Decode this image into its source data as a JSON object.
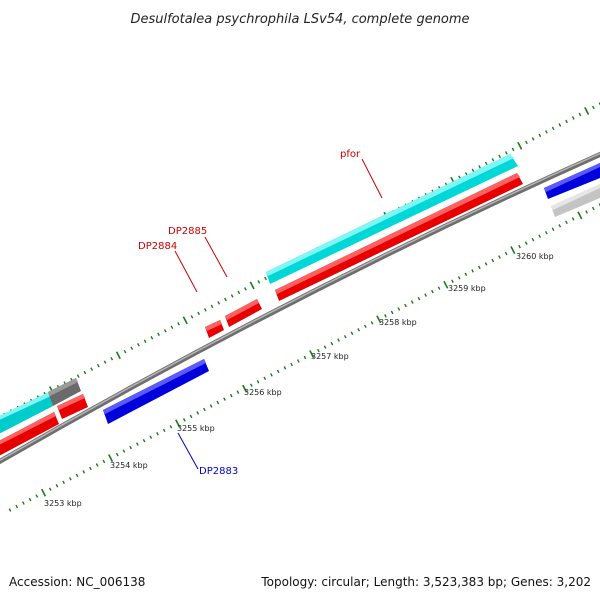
{
  "title": "Desulfotalea psychrophila LSv54, complete genome",
  "footer": {
    "accession": "Accession: NC_006138",
    "summary": "Topology: circular; Length: 3,523,383 bp; Genes: 3,202"
  },
  "kbp_labels": [
    "3253 kbp",
    "3254 kbp",
    "3255 kbp",
    "3256 kbp",
    "3257 kbp",
    "3258 kbp",
    "3259 kbp",
    "3260 kbp"
  ],
  "gene_labels": {
    "pfor": "pfor",
    "dp2885": "DP2885",
    "dp2884": "DP2884",
    "dp2883": "DP2883"
  },
  "colors": {
    "cyan": "#00e5e5",
    "red": "#ff0000",
    "blue": "#0000ee",
    "grey": "#707070",
    "light_grey": "#c8c8c8",
    "backbone": "#8a8a8a",
    "ticks": "#1a7a1a",
    "label_red": "#cc0000",
    "label_blue": "#0000cc"
  },
  "icons": [
    "arrow-shaped gene features"
  ]
}
